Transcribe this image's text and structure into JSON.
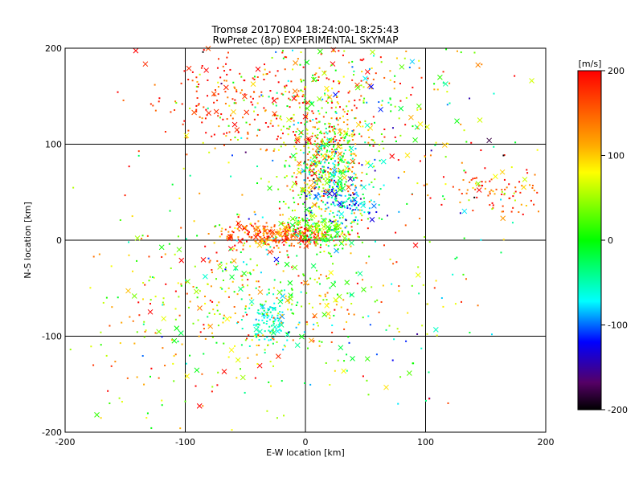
{
  "chart_data": {
    "type": "scatter",
    "title": "Tromsø 20170804 18:24:00-18:25:43",
    "subtitle": "RwPretec (8p) EXPERIMENTAL SKYMAP",
    "xlabel": "E-W location [km]",
    "ylabel": "N-S location [km]",
    "xlim": [
      -200,
      200
    ],
    "ylim": [
      -200,
      200
    ],
    "x_ticks": [
      -200,
      -100,
      0,
      100,
      200
    ],
    "y_ticks": [
      -200,
      -100,
      0,
      100,
      200
    ],
    "grid": true,
    "colorbar": {
      "label": "[m/s]",
      "range": [
        -200,
        200
      ],
      "ticks": [
        200,
        100,
        0,
        -100,
        -200
      ],
      "colormap": "rainbow"
    },
    "clusters": [
      {
        "x": 15,
        "y": 85,
        "sx": 18,
        "sy": 30,
        "v": 80,
        "vs": 70,
        "n": 380
      },
      {
        "x": 30,
        "y": 40,
        "sx": 15,
        "sy": 12,
        "v": -90,
        "vs": 40,
        "n": 160
      },
      {
        "x": 20,
        "y": 75,
        "sx": 12,
        "sy": 20,
        "v": -40,
        "vs": 40,
        "n": 120
      },
      {
        "x": -20,
        "y": 5,
        "sx": 25,
        "sy": 7,
        "v": 150,
        "vs": 50,
        "n": 300
      },
      {
        "x": 12,
        "y": 10,
        "sx": 15,
        "sy": 10,
        "v": 20,
        "vs": 40,
        "n": 180
      },
      {
        "x": -30,
        "y": -85,
        "sx": 10,
        "sy": 12,
        "v": -60,
        "vs": 15,
        "n": 110
      },
      {
        "x": -40,
        "y": -60,
        "sx": 50,
        "sy": 50,
        "v": 60,
        "vs": 80,
        "n": 420
      },
      {
        "x": 20,
        "y": 150,
        "sx": 50,
        "sy": 35,
        "v": 130,
        "vs": 90,
        "n": 280
      },
      {
        "x": -75,
        "y": 150,
        "sx": 30,
        "sy": 25,
        "v": 180,
        "vs": 30,
        "n": 70
      },
      {
        "x": 160,
        "y": 50,
        "sx": 25,
        "sy": 12,
        "v": 150,
        "vs": 50,
        "n": 90
      },
      {
        "x": 40,
        "y": 120,
        "sx": 80,
        "sy": 60,
        "v": 40,
        "vs": 110,
        "n": 260
      },
      {
        "x": -130,
        "y": -80,
        "sx": 35,
        "sy": 70,
        "v": 90,
        "vs": 80,
        "n": 90
      },
      {
        "x": 80,
        "y": -60,
        "sx": 40,
        "sy": 60,
        "v": 30,
        "vs": 90,
        "n": 80
      },
      {
        "x": -60,
        "y": 140,
        "sx": 25,
        "sy": 30,
        "v": 170,
        "vs": 40,
        "n": 60
      }
    ]
  }
}
